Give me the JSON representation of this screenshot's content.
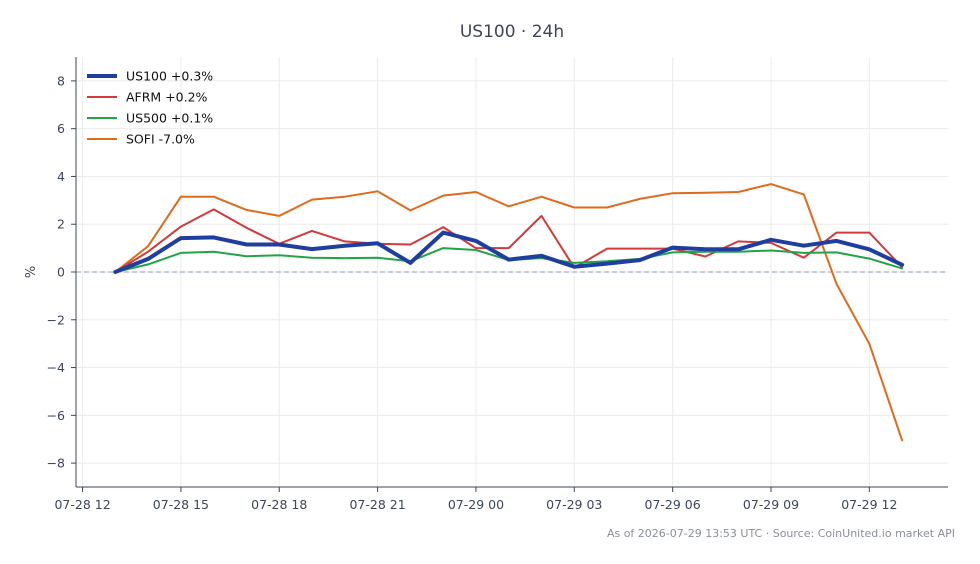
{
  "chart_data": {
    "type": "line",
    "title": "US100 · 24h",
    "xlabel": "",
    "ylabel": "%",
    "ylim": [
      -9,
      9
    ],
    "yticks": [
      -8,
      -6,
      -4,
      -2,
      0,
      2,
      4,
      6,
      8
    ],
    "xlim": [
      "2026-07-28 11:48",
      "2026-07-29 14:24"
    ],
    "xticks": [
      "07-28 12",
      "07-28 15",
      "07-28 18",
      "07-28 21",
      "07-29 00",
      "07-29 03",
      "07-29 06",
      "07-29 09",
      "07-29 12"
    ],
    "grid": true,
    "legend_position": "top-left",
    "x": [
      "07-28 13:00",
      "07-28 14:00",
      "07-28 15:00",
      "07-28 16:00",
      "07-28 17:00",
      "07-28 18:00",
      "07-28 19:00",
      "07-28 20:00",
      "07-28 21:00",
      "07-28 22:00",
      "07-28 23:00",
      "07-29 00:00",
      "07-29 01:00",
      "07-29 02:00",
      "07-29 03:00",
      "07-29 04:00",
      "07-29 05:00",
      "07-29 06:00",
      "07-29 07:00",
      "07-29 08:00",
      "07-29 09:00",
      "07-29 10:00",
      "07-29 11:00",
      "07-29 12:00",
      "07-29 13:00"
    ],
    "series": [
      {
        "name": "US100 +0.3%",
        "color": "#1f3fa0",
        "values": [
          0,
          0.55,
          1.42,
          1.45,
          1.15,
          1.15,
          0.96,
          1.1,
          1.2,
          0.38,
          1.65,
          1.3,
          0.52,
          0.68,
          0.22,
          0.35,
          0.5,
          1.02,
          0.95,
          0.95,
          1.35,
          1.1,
          1.3,
          0.95,
          0.3
        ]
      },
      {
        "name": "AFRM +0.2%",
        "color": "#d23a3a",
        "values": [
          0,
          0.85,
          1.9,
          2.62,
          1.85,
          1.18,
          1.72,
          1.28,
          1.18,
          1.15,
          1.88,
          1.0,
          1.0,
          2.35,
          0.18,
          0.98,
          0.98,
          0.98,
          0.65,
          1.28,
          1.22,
          0.6,
          1.65,
          1.65,
          0.2
        ]
      },
      {
        "name": "US500 +0.1%",
        "color": "#23a347",
        "values": [
          0,
          0.32,
          0.8,
          0.85,
          0.66,
          0.7,
          0.6,
          0.58,
          0.6,
          0.45,
          1.0,
          0.92,
          0.5,
          0.58,
          0.38,
          0.45,
          0.55,
          0.82,
          0.85,
          0.85,
          0.9,
          0.8,
          0.82,
          0.56,
          0.15
        ]
      },
      {
        "name": "SOFI -7.0%",
        "color": "#e06a1b",
        "values": [
          0,
          1.08,
          3.15,
          3.15,
          2.6,
          2.35,
          3.03,
          3.15,
          3.38,
          2.58,
          3.2,
          3.35,
          2.75,
          3.15,
          2.7,
          2.7,
          3.06,
          3.3,
          3.32,
          3.35,
          3.68,
          3.25,
          -0.5,
          -3.0,
          -7.05
        ]
      }
    ]
  },
  "footer": "As of 2026-07-29 13:53 UTC · Source: CoinUnited.io market API"
}
